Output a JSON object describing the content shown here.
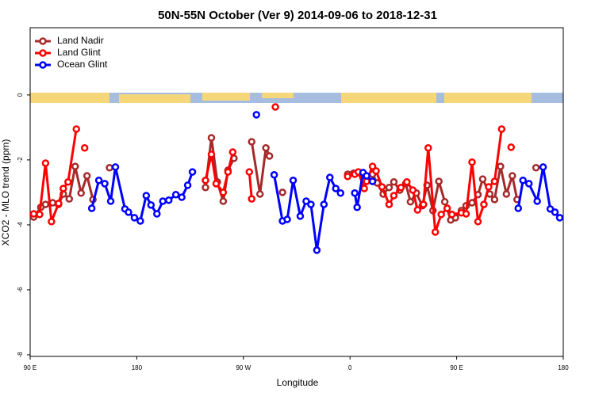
{
  "chart_data": {
    "type": "line",
    "title": "50N-55N October (Ver 9)   2014-09-06 to 2018-12-31",
    "x_label": "Longitude",
    "y_label": "XCO2 - MLO trend (ppm)",
    "xlim": [
      90,
      540
    ],
    "ylim": [
      -8.05,
      2.07
    ],
    "xticks": [
      {
        "value": 90,
        "label": "90 E"
      },
      180,
      {
        "value": 270,
        "label": "90 W"
      },
      {
        "value": 360,
        "label": "0"
      },
      {
        "value": 450,
        "label": "90 E"
      },
      {
        "value": 540,
        "label": "180"
      }
    ],
    "yticks": [
      0,
      -2,
      -4,
      -6,
      -8
    ],
    "legend": "top-left",
    "series": [
      {
        "name": "Land Nadir",
        "color": "#a52a2a",
        "x": [
          93,
          99,
          103,
          109,
          114,
          118,
          123,
          128,
          133,
          138,
          143,
          null,
          157,
          null,
          238,
          243,
          248,
          253,
          257,
          262,
          null,
          277,
          284,
          289,
          292,
          null,
          303,
          null,
          358,
          363,
          368,
          374,
          379,
          383,
          388,
          393,
          397,
          402,
          407,
          411,
          416,
          421,
          425,
          430,
          435,
          440,
          445,
          449,
          454,
          458,
          463,
          468,
          472,
          478,
          482,
          487,
          492,
          497,
          501,
          null,
          517
        ],
        "values": [
          -3.76,
          -3.46,
          -3.37,
          -3.32,
          -3.37,
          -3.05,
          -3.2,
          -2.2,
          -3.02,
          -2.49,
          -3.22,
          null,
          -2.24,
          null,
          -2.85,
          -1.32,
          -2.68,
          -3.27,
          -2.32,
          -1.95,
          null,
          -1.44,
          -3.05,
          -1.63,
          -1.88,
          null,
          -3.0,
          null,
          -2.44,
          -2.41,
          -2.39,
          -2.54,
          -2.44,
          -2.71,
          -3.05,
          -2.85,
          -2.68,
          -2.93,
          -2.73,
          -3.29,
          -3.02,
          -3.41,
          -2.78,
          -3.56,
          -2.66,
          -3.29,
          -3.85,
          -3.78,
          -3.56,
          -3.41,
          -3.32,
          -3.07,
          -2.59,
          -3.05,
          -3.22,
          -2.2,
          -3.05,
          -2.49,
          -3.22,
          null,
          -2.24
        ]
      },
      {
        "name": "Land Glint",
        "color": "#ff0000",
        "x": [
          93,
          98,
          103,
          108,
          114,
          118,
          122,
          129,
          null,
          136,
          null,
          238,
          243,
          247,
          253,
          257,
          261,
          null,
          275,
          277,
          null,
          297,
          null,
          358,
          364,
          367,
          372,
          374,
          379,
          382,
          387,
          393,
          397,
          403,
          408,
          413,
          417,
          422,
          426,
          432,
          437,
          442,
          446,
          454,
          458,
          463,
          468,
          473,
          477,
          482,
          488,
          null,
          496
        ],
        "values": [
          -3.66,
          -3.68,
          -2.1,
          -3.9,
          -3.34,
          -2.88,
          -2.68,
          -1.05,
          null,
          -1.63,
          null,
          -2.63,
          -1.83,
          -2.73,
          -3.0,
          -2.37,
          -1.76,
          null,
          -2.37,
          -3.2,
          null,
          -0.37,
          null,
          -2.51,
          -2.44,
          -2.37,
          -2.88,
          -2.66,
          -2.2,
          -2.34,
          -2.83,
          -3.37,
          -3.1,
          -2.85,
          -2.68,
          -2.93,
          -3.54,
          -3.37,
          -1.63,
          -4.22,
          -3.68,
          -3.49,
          -3.68,
          -3.63,
          -3.66,
          -2.07,
          -3.9,
          -3.37,
          -2.83,
          -2.66,
          -1.05,
          null,
          -1.61
        ]
      },
      {
        "name": "Ocean Glint",
        "color": "#0000ff",
        "x": [
          142,
          148,
          153,
          158,
          162,
          170,
          173,
          178,
          183,
          188,
          192,
          197,
          202,
          207,
          213,
          218,
          223,
          227,
          null,
          281,
          null,
          296,
          303,
          307,
          312,
          318,
          323,
          327,
          332,
          338,
          343,
          348,
          352,
          null,
          364,
          366,
          371,
          374,
          379,
          null,
          502,
          506,
          511,
          518,
          523,
          529,
          533,
          537
        ],
        "values": [
          -3.49,
          -2.63,
          -2.73,
          -3.27,
          -2.22,
          -3.51,
          -3.61,
          -3.78,
          -3.88,
          -3.1,
          -3.39,
          -3.66,
          -3.27,
          -3.24,
          -3.07,
          -3.15,
          -2.78,
          -2.37,
          null,
          -0.61,
          null,
          -2.46,
          -3.88,
          -3.83,
          -2.63,
          -3.73,
          -3.27,
          -3.37,
          -4.78,
          -3.37,
          -2.54,
          -2.88,
          -3.02,
          null,
          -3.02,
          -3.46,
          -2.39,
          -2.49,
          -2.66,
          null,
          -3.49,
          -2.63,
          -2.73,
          -3.27,
          -2.22,
          -3.51,
          -3.61,
          -3.78
        ]
      }
    ]
  }
}
